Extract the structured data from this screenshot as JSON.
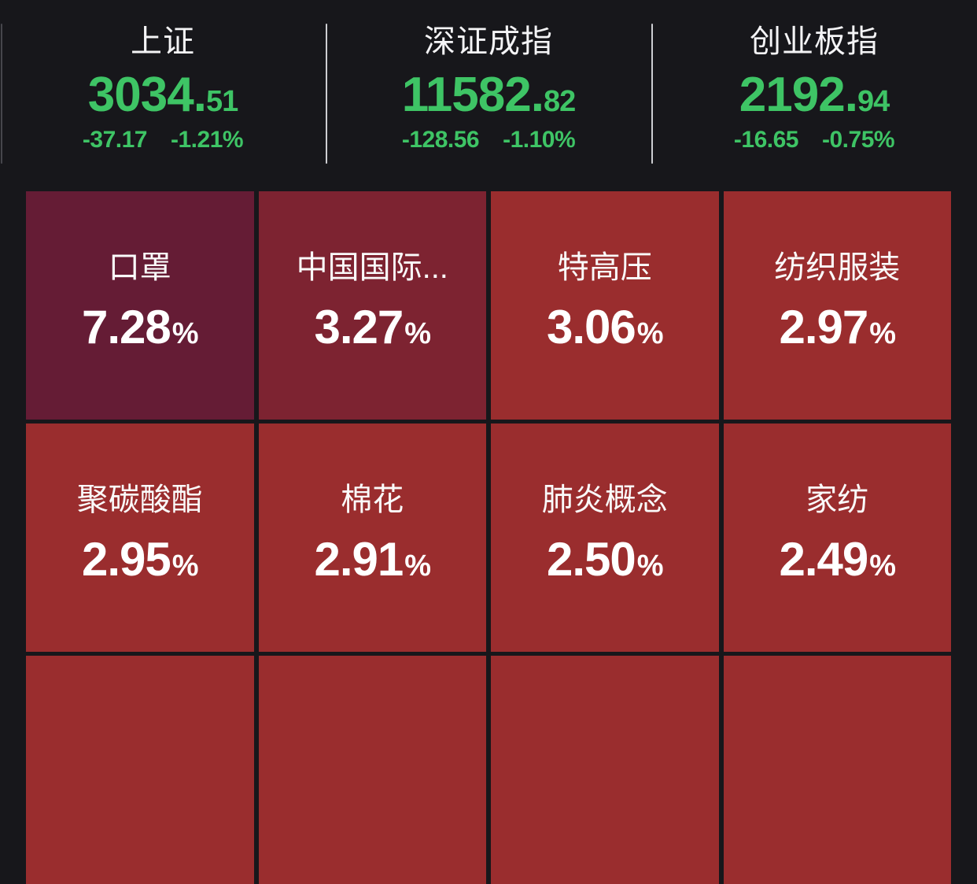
{
  "colors": {
    "background": "#17171b",
    "index_green": "#3ec465",
    "divider": "#cdced2",
    "divider_faint": "#46464c",
    "tile_text": "#ffffff"
  },
  "indices": [
    {
      "name": "上证",
      "value_main": "3034.",
      "value_frac": "51",
      "change": "-37.17",
      "change_pct": "-1.21%"
    },
    {
      "name": "深证成指",
      "value_main": "11582.",
      "value_frac": "82",
      "change": "-128.56",
      "change_pct": "-1.10%"
    },
    {
      "name": "创业板指",
      "value_main": "2192.",
      "value_frac": "94",
      "change": "-16.65",
      "change_pct": "-0.75%"
    }
  ],
  "heatmap": {
    "pct_suffix": "%",
    "tiles": [
      {
        "name": "口罩",
        "pct": "7.28",
        "color": "#651c35"
      },
      {
        "name": "中国国际...",
        "pct": "3.27",
        "color": "#7d2331"
      },
      {
        "name": "特高压",
        "pct": "3.06",
        "color": "#9a2d2e"
      },
      {
        "name": "纺织服装",
        "pct": "2.97",
        "color": "#9a2d2e"
      },
      {
        "name": "聚碳酸酯",
        "pct": "2.95",
        "color": "#9a2d2e"
      },
      {
        "name": "棉花",
        "pct": "2.91",
        "color": "#9a2d2e"
      },
      {
        "name": "肺炎概念",
        "pct": "2.50",
        "color": "#9a2d2e"
      },
      {
        "name": "家纺",
        "pct": "2.49",
        "color": "#9a2d2e"
      }
    ],
    "partial_next_row": [
      {
        "color": "#9a2d2e"
      },
      {
        "color": "#9a2d2e"
      },
      {
        "color": "#9a2d2e"
      },
      {
        "color": "#9a2d2e"
      }
    ]
  }
}
